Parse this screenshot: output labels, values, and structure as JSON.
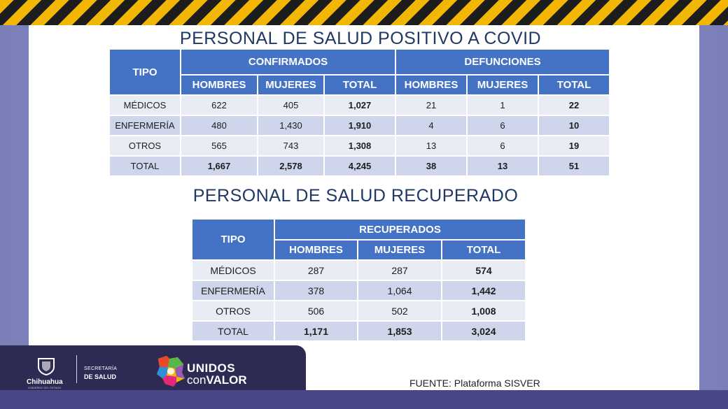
{
  "table1": {
    "title": "PERSONAL DE SALUD POSITIVO A COVID",
    "tipo_header": "TIPO",
    "group_headers": [
      "CONFIRMADOS",
      "DEFUNCIONES"
    ],
    "sub_headers": [
      "HOMBRES",
      "MUJERES",
      "TOTAL",
      "HOMBRES",
      "MUJERES",
      "TOTAL"
    ],
    "rows": [
      {
        "tipo": "MÉDICOS",
        "values": [
          "622",
          "405",
          "1,027",
          "21",
          "1",
          "22"
        ]
      },
      {
        "tipo": "ENFERMERÍA",
        "values": [
          "480",
          "1,430",
          "1,910",
          "4",
          "6",
          "10"
        ]
      },
      {
        "tipo": "OTROS",
        "values": [
          "565",
          "743",
          "1,308",
          "13",
          "6",
          "19"
        ]
      },
      {
        "tipo": "TOTAL",
        "values": [
          "1,667",
          "2,578",
          "4,245",
          "38",
          "13",
          "51"
        ]
      }
    ]
  },
  "table2": {
    "title": "PERSONAL DE SALUD RECUPERADO",
    "tipo_header": "TIPO",
    "group_header": "RECUPERADOS",
    "sub_headers": [
      "HOMBRES",
      "MUJERES",
      "TOTAL"
    ],
    "rows": [
      {
        "tipo": "MÉDICOS",
        "values": [
          "287",
          "287",
          "574"
        ]
      },
      {
        "tipo": "ENFERMERÍA",
        "values": [
          "378",
          "1,064",
          "1,442"
        ]
      },
      {
        "tipo": "OTROS",
        "values": [
          "506",
          "502",
          "1,008"
        ]
      },
      {
        "tipo": "TOTAL",
        "values": [
          "1,171",
          "1,853",
          "3,024"
        ]
      }
    ]
  },
  "source": "FUENTE: Plataforma SISVER",
  "footer": {
    "state_name": "Chihuahua",
    "state_sub": "GOBIERNO DEL ESTADO",
    "secretaria": "SECRETARÍA",
    "de_salud": "DE SALUD",
    "slogan_line1": "UNIDOS",
    "slogan_con": "con",
    "slogan_valor": "VALOR"
  },
  "colors": {
    "header_blue": "#4472c4",
    "row_light": "#e9ebf5",
    "row_dark": "#cfd5ea",
    "title_navy": "#1f3864",
    "footer_bg": "#2d2a54"
  }
}
